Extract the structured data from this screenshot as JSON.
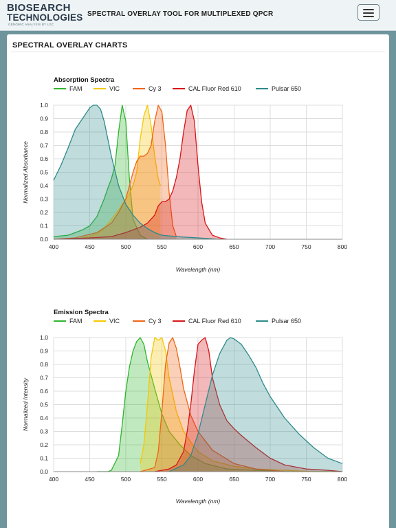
{
  "header": {
    "logo_main": "BIOSEARCH",
    "logo_sub": "TECHNOLOGIES",
    "logo_tag": "GENOMIC ANALYSIS BY LGC",
    "tool_title": "SPECTRAL OVERLAY TOOL FOR MULTIPLEXED QPCR",
    "menu_icon": "hamburger-menu-icon"
  },
  "panel": {
    "title": "SPECTRAL OVERLAY CHARTS"
  },
  "colors": {
    "FAM": "#2db52d",
    "VIC": "#f5c800",
    "Cy 3": "#f06515",
    "CAL Fluor Red 610": "#d61418",
    "Pulsar 650": "#2d8a8a"
  },
  "chart_data": [
    {
      "type": "area",
      "title": "Absorption Spectra",
      "xlabel": "Wavelength (nm)",
      "ylabel": "Normalized Absorbance",
      "xlim": [
        400,
        800
      ],
      "ylim": [
        0,
        1
      ],
      "xticks": [
        "400",
        "450",
        "500",
        "550",
        "600",
        "650",
        "700",
        "750",
        "800"
      ],
      "yticks": [
        "0.0",
        "0.1",
        "0.2",
        "0.3",
        "0.4",
        "0.5",
        "0.6",
        "0.7",
        "0.8",
        "0.9",
        "1.0"
      ],
      "grid": true,
      "legend": "top-left",
      "series": [
        {
          "name": "FAM",
          "x": [
            400,
            420,
            440,
            450,
            460,
            470,
            475,
            480,
            485,
            490,
            495,
            500,
            505,
            510,
            520,
            530
          ],
          "y": [
            0.02,
            0.03,
            0.07,
            0.1,
            0.17,
            0.3,
            0.38,
            0.45,
            0.55,
            0.8,
            1.0,
            0.88,
            0.45,
            0.15,
            0.03,
            0.0
          ]
        },
        {
          "name": "VIC",
          "x": [
            430,
            450,
            460,
            470,
            480,
            490,
            500,
            505,
            510,
            515,
            520,
            525,
            530,
            535,
            540,
            545,
            548
          ],
          "y": [
            0.0,
            0.02,
            0.04,
            0.08,
            0.15,
            0.22,
            0.3,
            0.34,
            0.4,
            0.5,
            0.75,
            0.92,
            1.0,
            0.85,
            0.62,
            0.45,
            0.4
          ]
        },
        {
          "name": "Cy 3",
          "x": [
            400,
            430,
            460,
            480,
            490,
            500,
            505,
            510,
            515,
            520,
            525,
            530,
            535,
            540,
            545,
            550,
            555,
            560,
            565,
            570
          ],
          "y": [
            0.0,
            0.01,
            0.05,
            0.12,
            0.2,
            0.3,
            0.4,
            0.5,
            0.58,
            0.62,
            0.62,
            0.64,
            0.7,
            0.88,
            1.0,
            0.95,
            0.7,
            0.35,
            0.1,
            0.02
          ]
        },
        {
          "name": "CAL Fluor Red 610",
          "x": [
            400,
            450,
            480,
            500,
            520,
            530,
            540,
            545,
            550,
            555,
            560,
            565,
            570,
            575,
            580,
            585,
            590,
            595,
            600,
            605,
            610,
            620,
            630,
            640
          ],
          "y": [
            0.0,
            0.01,
            0.02,
            0.05,
            0.09,
            0.12,
            0.18,
            0.25,
            0.28,
            0.28,
            0.3,
            0.36,
            0.46,
            0.6,
            0.8,
            0.96,
            1.0,
            0.88,
            0.55,
            0.28,
            0.12,
            0.03,
            0.01,
            0.0
          ]
        },
        {
          "name": "Pulsar 650",
          "x": [
            400,
            410,
            420,
            430,
            440,
            450,
            455,
            460,
            465,
            470,
            480,
            490,
            500,
            510,
            520,
            530,
            540,
            550,
            570,
            600,
            630
          ],
          "y": [
            0.44,
            0.55,
            0.68,
            0.82,
            0.9,
            0.98,
            1.0,
            1.0,
            0.97,
            0.88,
            0.62,
            0.4,
            0.26,
            0.18,
            0.12,
            0.08,
            0.05,
            0.03,
            0.02,
            0.01,
            0.0
          ]
        }
      ]
    },
    {
      "type": "area",
      "title": "Emission Spectra",
      "xlabel": "Wavelength (nm)",
      "ylabel": "Normalized Intensity",
      "xlim": [
        400,
        800
      ],
      "ylim": [
        0,
        1
      ],
      "xticks": [
        "400",
        "450",
        "500",
        "550",
        "600",
        "650",
        "700",
        "750",
        "800"
      ],
      "yticks": [
        "0.0",
        "0.1",
        "0.2",
        "0.3",
        "0.4",
        "0.5",
        "0.6",
        "0.7",
        "0.8",
        "0.9",
        "1.0"
      ],
      "grid": true,
      "legend": "top-left",
      "series": [
        {
          "name": "FAM",
          "x": [
            460,
            475,
            480,
            490,
            495,
            500,
            505,
            510,
            515,
            520,
            525,
            530,
            540,
            550,
            560,
            575,
            590,
            610,
            640,
            680,
            720,
            760,
            800
          ],
          "y": [
            0.0,
            0.0,
            0.01,
            0.12,
            0.35,
            0.6,
            0.78,
            0.9,
            0.97,
            1.0,
            0.95,
            0.82,
            0.62,
            0.43,
            0.3,
            0.2,
            0.12,
            0.06,
            0.02,
            0.01,
            0.0,
            0.0,
            0.0
          ]
        },
        {
          "name": "VIC",
          "x": [
            520,
            525,
            530,
            535,
            540,
            545,
            550,
            555,
            560,
            570,
            580,
            590,
            600,
            620,
            650,
            680,
            720,
            760,
            790
          ],
          "y": [
            0.06,
            0.2,
            0.5,
            0.85,
            1.0,
            0.98,
            1.0,
            0.9,
            0.7,
            0.45,
            0.3,
            0.22,
            0.15,
            0.08,
            0.04,
            0.02,
            0.01,
            0.0,
            0.0
          ]
        },
        {
          "name": "Cy 3",
          "x": [
            520,
            540,
            545,
            550,
            555,
            560,
            565,
            570,
            575,
            580,
            590,
            600,
            620,
            650,
            680,
            700,
            720
          ],
          "y": [
            0.0,
            0.03,
            0.15,
            0.45,
            0.8,
            0.96,
            1.0,
            0.92,
            0.78,
            0.62,
            0.42,
            0.3,
            0.16,
            0.06,
            0.02,
            0.01,
            0.0
          ]
        },
        {
          "name": "CAL Fluor Red 610",
          "x": [
            540,
            560,
            570,
            580,
            585,
            590,
            595,
            600,
            605,
            610,
            615,
            620,
            630,
            640,
            650,
            660,
            680,
            700,
            720,
            750,
            780,
            800
          ],
          "y": [
            0.0,
            0.02,
            0.05,
            0.15,
            0.3,
            0.5,
            0.75,
            0.95,
            0.98,
            1.0,
            0.9,
            0.7,
            0.5,
            0.38,
            0.32,
            0.27,
            0.18,
            0.1,
            0.05,
            0.02,
            0.01,
            0.0
          ]
        },
        {
          "name": "Pulsar 650",
          "x": [
            560,
            580,
            590,
            600,
            610,
            620,
            630,
            640,
            645,
            650,
            655,
            660,
            670,
            680,
            690,
            700,
            720,
            740,
            760,
            780,
            800
          ],
          "y": [
            0.0,
            0.05,
            0.12,
            0.28,
            0.5,
            0.72,
            0.88,
            0.98,
            1.0,
            0.99,
            0.97,
            0.95,
            0.87,
            0.78,
            0.66,
            0.56,
            0.4,
            0.28,
            0.18,
            0.1,
            0.06
          ]
        }
      ]
    }
  ]
}
